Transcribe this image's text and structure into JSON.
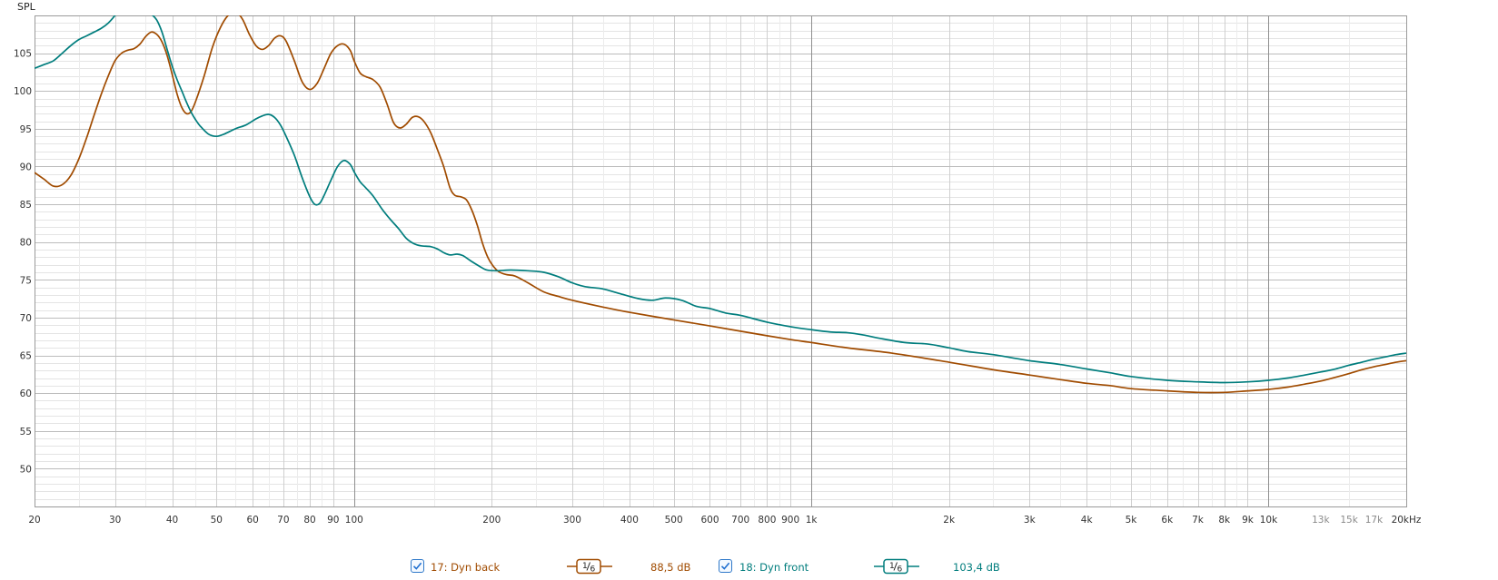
{
  "chart_data": {
    "type": "line",
    "title": "",
    "ylabel": "SPL",
    "xlabel": "",
    "xscale": "log",
    "xlim": [
      20,
      20000
    ],
    "ylim": [
      45,
      110
    ],
    "grid": true,
    "x_ticks": [
      {
        "v": 20,
        "label": "20"
      },
      {
        "v": 30,
        "label": "30"
      },
      {
        "v": 40,
        "label": "40"
      },
      {
        "v": 50,
        "label": "50"
      },
      {
        "v": 60,
        "label": "60"
      },
      {
        "v": 70,
        "label": "70"
      },
      {
        "v": 80,
        "label": "80"
      },
      {
        "v": 90,
        "label": "90"
      },
      {
        "v": 100,
        "label": "100"
      },
      {
        "v": 200,
        "label": "200"
      },
      {
        "v": 300,
        "label": "300"
      },
      {
        "v": 400,
        "label": "400"
      },
      {
        "v": 500,
        "label": "500"
      },
      {
        "v": 600,
        "label": "600"
      },
      {
        "v": 700,
        "label": "700"
      },
      {
        "v": 800,
        "label": "800"
      },
      {
        "v": 900,
        "label": "900"
      },
      {
        "v": 1000,
        "label": "1k"
      },
      {
        "v": 2000,
        "label": "2k"
      },
      {
        "v": 3000,
        "label": "3k"
      },
      {
        "v": 4000,
        "label": "4k"
      },
      {
        "v": 5000,
        "label": "5k"
      },
      {
        "v": 6000,
        "label": "6k"
      },
      {
        "v": 7000,
        "label": "7k"
      },
      {
        "v": 8000,
        "label": "8k"
      },
      {
        "v": 9000,
        "label": "9k"
      },
      {
        "v": 10000,
        "label": "10k"
      },
      {
        "v": 13000,
        "label": "13k",
        "minor": true
      },
      {
        "v": 15000,
        "label": "15k",
        "minor": true
      },
      {
        "v": 17000,
        "label": "17k",
        "minor": true
      },
      {
        "v": 20000,
        "label": "20kHz"
      }
    ],
    "y_ticks": [
      50,
      55,
      60,
      65,
      70,
      75,
      80,
      85,
      90,
      95,
      100,
      105
    ],
    "series": [
      {
        "name": "17: Dyn back",
        "color": "#a04b00",
        "points": [
          [
            20,
            89.2
          ],
          [
            21,
            88.3
          ],
          [
            22,
            87.4
          ],
          [
            23,
            87.6
          ],
          [
            24,
            88.8
          ],
          [
            25,
            91
          ],
          [
            26,
            93.8
          ],
          [
            27,
            96.8
          ],
          [
            28,
            99.6
          ],
          [
            29,
            102
          ],
          [
            30,
            104
          ],
          [
            31,
            105
          ],
          [
            32,
            105.4
          ],
          [
            33,
            105.6
          ],
          [
            34,
            106.2
          ],
          [
            35,
            107.2
          ],
          [
            36,
            107.8
          ],
          [
            37,
            107.5
          ],
          [
            38,
            106.5
          ],
          [
            39,
            104.7
          ],
          [
            40,
            102.2
          ],
          [
            41,
            99.6
          ],
          [
            42,
            97.8
          ],
          [
            43,
            97.0
          ],
          [
            44,
            97.3
          ],
          [
            45,
            98.6
          ],
          [
            47,
            102
          ],
          [
            49,
            105.8
          ],
          [
            51,
            108.4
          ],
          [
            53,
            110
          ],
          [
            55,
            110.5
          ],
          [
            57,
            109.5
          ],
          [
            59,
            107.5
          ],
          [
            61,
            106
          ],
          [
            63,
            105.5
          ],
          [
            65,
            106
          ],
          [
            67,
            107
          ],
          [
            69,
            107.3
          ],
          [
            71,
            106.6
          ],
          [
            74,
            104
          ],
          [
            77,
            101.2
          ],
          [
            80,
            100.2
          ],
          [
            83,
            101
          ],
          [
            86,
            103
          ],
          [
            89,
            105
          ],
          [
            92,
            106
          ],
          [
            95,
            106.2
          ],
          [
            98,
            105.4
          ],
          [
            100,
            104
          ],
          [
            103,
            102.4
          ],
          [
            106,
            101.9
          ],
          [
            110,
            101.5
          ],
          [
            114,
            100.5
          ],
          [
            118,
            98.3
          ],
          [
            122,
            95.8
          ],
          [
            126,
            95.1
          ],
          [
            130,
            95.6
          ],
          [
            134,
            96.5
          ],
          [
            138,
            96.6
          ],
          [
            142,
            96
          ],
          [
            147,
            94.5
          ],
          [
            152,
            92.3
          ],
          [
            157,
            90
          ],
          [
            162,
            87.2
          ],
          [
            166,
            86.2
          ],
          [
            171,
            86
          ],
          [
            176,
            85.6
          ],
          [
            181,
            84.2
          ],
          [
            186,
            82.2
          ],
          [
            191,
            79.8
          ],
          [
            196,
            78
          ],
          [
            201,
            76.9
          ],
          [
            207,
            76.1
          ],
          [
            215,
            75.7
          ],
          [
            225,
            75.5
          ],
          [
            240,
            74.6
          ],
          [
            260,
            73.4
          ],
          [
            280,
            72.8
          ],
          [
            300,
            72.3
          ],
          [
            350,
            71.4
          ],
          [
            400,
            70.7
          ],
          [
            500,
            69.7
          ],
          [
            600,
            68.9
          ],
          [
            700,
            68.2
          ],
          [
            800,
            67.6
          ],
          [
            900,
            67.1
          ],
          [
            1000,
            66.7
          ],
          [
            1200,
            66
          ],
          [
            1500,
            65.3
          ],
          [
            2000,
            64.1
          ],
          [
            2500,
            63.1
          ],
          [
            3000,
            62.4
          ],
          [
            3500,
            61.8
          ],
          [
            4000,
            61.3
          ],
          [
            4500,
            61
          ],
          [
            5000,
            60.6
          ],
          [
            6000,
            60.3
          ],
          [
            7000,
            60.1
          ],
          [
            8000,
            60.1
          ],
          [
            9000,
            60.3
          ],
          [
            10000,
            60.5
          ],
          [
            11000,
            60.8
          ],
          [
            12000,
            61.2
          ],
          [
            13000,
            61.6
          ],
          [
            14000,
            62.1
          ],
          [
            15000,
            62.6
          ],
          [
            16000,
            63.1
          ],
          [
            17000,
            63.5
          ],
          [
            18000,
            63.8
          ],
          [
            19000,
            64.1
          ],
          [
            20000,
            64.3
          ]
        ]
      },
      {
        "name": "18: Dyn front",
        "color": "#007d7d",
        "points": [
          [
            20,
            103
          ],
          [
            21,
            103.5
          ],
          [
            22,
            104
          ],
          [
            23,
            105
          ],
          [
            24,
            106
          ],
          [
            25,
            106.8
          ],
          [
            26,
            107.3
          ],
          [
            27,
            107.8
          ],
          [
            28,
            108.3
          ],
          [
            29,
            109
          ],
          [
            30,
            110
          ],
          [
            31,
            111.2
          ],
          [
            32,
            112
          ],
          [
            33,
            112.2
          ],
          [
            34,
            111.8
          ],
          [
            35,
            111
          ],
          [
            36,
            110.2
          ],
          [
            37,
            109.4
          ],
          [
            38,
            107.8
          ],
          [
            39,
            105.5
          ],
          [
            40,
            103.3
          ],
          [
            41,
            101.5
          ],
          [
            42,
            100
          ],
          [
            43,
            98.5
          ],
          [
            44,
            97.2
          ],
          [
            45,
            96.2
          ],
          [
            46,
            95.4
          ],
          [
            48,
            94.3
          ],
          [
            50,
            94
          ],
          [
            52,
            94.3
          ],
          [
            55,
            95
          ],
          [
            58,
            95.5
          ],
          [
            61,
            96.3
          ],
          [
            63,
            96.7
          ],
          [
            65,
            96.9
          ],
          [
            67,
            96.5
          ],
          [
            69,
            95.5
          ],
          [
            71,
            94
          ],
          [
            74,
            91.5
          ],
          [
            77,
            88.5
          ],
          [
            80,
            86
          ],
          [
            82,
            85
          ],
          [
            84,
            85.1
          ],
          [
            86,
            86.2
          ],
          [
            89,
            88.2
          ],
          [
            92,
            90
          ],
          [
            95,
            90.8
          ],
          [
            98,
            90.3
          ],
          [
            100,
            89.3
          ],
          [
            103,
            88
          ],
          [
            106,
            87.2
          ],
          [
            110,
            86.1
          ],
          [
            115,
            84.4
          ],
          [
            120,
            83
          ],
          [
            125,
            81.8
          ],
          [
            130,
            80.5
          ],
          [
            135,
            79.8
          ],
          [
            140,
            79.5
          ],
          [
            147,
            79.4
          ],
          [
            152,
            79.1
          ],
          [
            157,
            78.6
          ],
          [
            162,
            78.3
          ],
          [
            168,
            78.4
          ],
          [
            173,
            78.2
          ],
          [
            180,
            77.5
          ],
          [
            188,
            76.8
          ],
          [
            195,
            76.3
          ],
          [
            205,
            76.2
          ],
          [
            220,
            76.3
          ],
          [
            240,
            76.2
          ],
          [
            260,
            76
          ],
          [
            280,
            75.4
          ],
          [
            300,
            74.6
          ],
          [
            320,
            74.1
          ],
          [
            350,
            73.8
          ],
          [
            380,
            73.2
          ],
          [
            420,
            72.5
          ],
          [
            450,
            72.3
          ],
          [
            480,
            72.6
          ],
          [
            520,
            72.3
          ],
          [
            560,
            71.5
          ],
          [
            600,
            71.2
          ],
          [
            650,
            70.6
          ],
          [
            700,
            70.3
          ],
          [
            800,
            69.4
          ],
          [
            900,
            68.8
          ],
          [
            1000,
            68.4
          ],
          [
            1100,
            68.1
          ],
          [
            1200,
            68
          ],
          [
            1300,
            67.7
          ],
          [
            1400,
            67.3
          ],
          [
            1600,
            66.7
          ],
          [
            1800,
            66.5
          ],
          [
            2000,
            66
          ],
          [
            2200,
            65.5
          ],
          [
            2500,
            65.1
          ],
          [
            3000,
            64.3
          ],
          [
            3500,
            63.8
          ],
          [
            4000,
            63.2
          ],
          [
            4500,
            62.7
          ],
          [
            5000,
            62.2
          ],
          [
            6000,
            61.7
          ],
          [
            7000,
            61.5
          ],
          [
            8000,
            61.4
          ],
          [
            9000,
            61.5
          ],
          [
            10000,
            61.7
          ],
          [
            11000,
            62
          ],
          [
            12000,
            62.4
          ],
          [
            13000,
            62.8
          ],
          [
            14000,
            63.2
          ],
          [
            15000,
            63.7
          ],
          [
            16000,
            64.1
          ],
          [
            17000,
            64.5
          ],
          [
            18000,
            64.8
          ],
          [
            19000,
            65.1
          ],
          [
            20000,
            65.3
          ]
        ]
      }
    ]
  },
  "legend": [
    {
      "label": "17: Dyn back",
      "smoothing": "1/6",
      "smooth_num": "1",
      "smooth_den": "6",
      "value": "88,5 dB",
      "color": "#a04b00",
      "checked": true
    },
    {
      "label": "18: Dyn front",
      "smoothing": "1/6",
      "smooth_num": "1",
      "smooth_den": "6",
      "value": "103,4 dB",
      "color": "#007d7d",
      "checked": true
    }
  ]
}
